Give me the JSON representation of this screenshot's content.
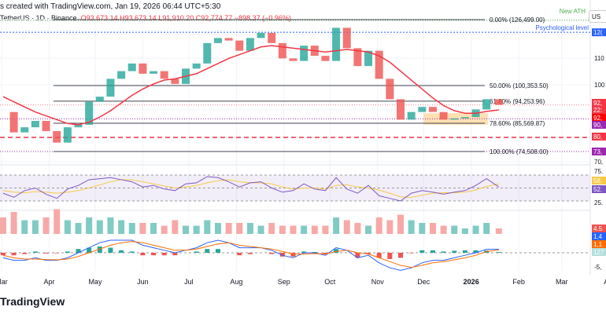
{
  "header": {
    "caption": "s created with TradingView.com, Jan 19, 2026 06:44 UTC+5:30",
    "symbol": "TetherUS · 1D · Binance",
    "open": "O93,673.14",
    "high": "H93,673.14",
    "low": "L91,910.20",
    "close": "C92,774.77",
    "change": "−898.37 (−0.96%)",
    "currency": "US"
  },
  "logo": "TradingView",
  "annotations": {
    "ath": "New ATH",
    "psych": "Psychological level"
  },
  "colors": {
    "up": "#26a69a",
    "down": "#ef5350",
    "ma": "#f23645",
    "rsi": "#7e57c2",
    "rsi_ma": "#f7c948",
    "macd": "#2962ff",
    "signal": "#ff6d00",
    "ath": "#4caf50",
    "psych": "#2962ff",
    "fib": "#434651"
  },
  "right_axis": [
    "12(",
    "110",
    "100",
    "70,",
    "75.",
    "25.",
    "-5,"
  ],
  "badges": [
    {
      "t": "92,",
      "c": "#f23645",
      "p": 92775
    },
    {
      "t": "22:",
      "c": "#f23645",
      "p": 91200
    },
    {
      "t": "92,",
      "c": "#ff0000",
      "p": 89200
    },
    {
      "t": "90,",
      "c": "#9c27b0",
      "p": 87300
    },
    {
      "t": "80,",
      "c": "#f23645",
      "p": 80000
    },
    {
      "t": "73,",
      "c": "#9c27b0",
      "p": 74508
    }
  ],
  "osc_badges": [
    {
      "t": "58.",
      "c": "#f7c948",
      "y": "rsi",
      "v": 58
    },
    {
      "t": "52.",
      "c": "#7e57c2",
      "y": "rsi",
      "v": 52
    },
    {
      "t": "4.5",
      "c": "#ef5350",
      "y": "vol"
    },
    {
      "t": "1,4",
      "c": "#2962ff",
      "y": "macd1"
    },
    {
      "t": "1,1",
      "c": "#ff6d00",
      "y": "macd2"
    },
    {
      "t": "127",
      "c": "#b2dfdb",
      "y": "macd3"
    }
  ],
  "chart_data": {
    "type": "line",
    "title": "",
    "x_ticks": [
      "Mar",
      "Apr",
      "May",
      "Jun",
      "Jul",
      "Aug",
      "Sep",
      "Oct",
      "Nov",
      "Dec",
      "2026",
      "Feb",
      "Mar",
      "Apr"
    ],
    "x_tick_dates": [
      "2025-03-01",
      "2025-04-01",
      "2025-05-01",
      "2025-06-01",
      "2025-07-01",
      "2025-08-01",
      "2025-09-01",
      "2025-10-01",
      "2025-11-01",
      "2025-12-01",
      "2026-01-01",
      "2026-02-01",
      "2026-03-01",
      "2026-04-01"
    ],
    "dates": [
      "2025-03-02",
      "2025-03-09",
      "2025-03-16",
      "2025-03-23",
      "2025-03-30",
      "2025-04-06",
      "2025-04-13",
      "2025-04-20",
      "2025-04-27",
      "2025-05-04",
      "2025-05-11",
      "2025-05-18",
      "2025-05-25",
      "2025-06-01",
      "2025-06-08",
      "2025-06-15",
      "2025-06-22",
      "2025-06-29",
      "2025-07-06",
      "2025-07-13",
      "2025-07-20",
      "2025-07-27",
      "2025-08-03",
      "2025-08-10",
      "2025-08-17",
      "2025-08-24",
      "2025-08-31",
      "2025-09-07",
      "2025-09-14",
      "2025-09-21",
      "2025-09-28",
      "2025-10-05",
      "2025-10-12",
      "2025-10-19",
      "2025-10-26",
      "2025-11-02",
      "2025-11-09",
      "2025-11-16",
      "2025-11-23",
      "2025-11-30",
      "2025-12-07",
      "2025-12-14",
      "2025-12-21",
      "2025-12-28",
      "2026-01-04",
      "2026-01-11",
      "2026-01-19"
    ],
    "series": [
      {
        "role": "price",
        "values": [
          90000,
          82000,
          84000,
          86500,
          82500,
          78000,
          84000,
          85000,
          94000,
          96000,
          103000,
          106000,
          109000,
          105000,
          106000,
          103000,
          101000,
          107000,
          109000,
          117000,
          119000,
          118000,
          114000,
          119000,
          121000,
          117000,
          111000,
          110000,
          116000,
          112000,
          110000,
          123000,
          115000,
          108000,
          114000,
          103000,
          95000,
          87000,
          90000,
          92000,
          90000,
          87000,
          87500,
          88000,
          91000,
          95000,
          92775
        ]
      },
      {
        "role": "moving-average",
        "values": [
          96000,
          94000,
          92000,
          90000,
          88500,
          87000,
          85500,
          85000,
          86000,
          88000,
          90500,
          93500,
          96500,
          99000,
          101000,
          102500,
          103000,
          104000,
          105000,
          107000,
          109000,
          111000,
          112500,
          114000,
          115500,
          116000,
          115500,
          115000,
          114500,
          114000,
          113500,
          114000,
          114500,
          114000,
          113500,
          112000,
          109500,
          106000,
          102500,
          99000,
          95500,
          92500,
          90500,
          89500,
          89500,
          90200,
          90800
        ]
      },
      {
        "role": "rsi",
        "values": [
          40,
          32,
          45,
          50,
          38,
          30,
          48,
          55,
          66,
          68,
          70,
          66,
          62,
          52,
          55,
          48,
          45,
          58,
          60,
          72,
          70,
          62,
          52,
          60,
          62,
          50,
          42,
          45,
          58,
          48,
          45,
          70,
          48,
          40,
          55,
          35,
          30,
          25,
          40,
          45,
          42,
          38,
          42,
          45,
          55,
          68,
          52
        ]
      },
      {
        "role": "rsi-ma",
        "values": [
          45,
          42,
          41,
          43,
          42,
          40,
          42,
          45,
          50,
          56,
          62,
          66,
          66,
          62,
          58,
          54,
          50,
          52,
          55,
          60,
          64,
          66,
          62,
          60,
          60,
          58,
          52,
          48,
          50,
          50,
          48,
          55,
          56,
          52,
          50,
          46,
          40,
          33,
          32,
          36,
          40,
          41,
          41,
          42,
          46,
          53,
          58
        ]
      },
      {
        "role": "volume",
        "values": [
          6,
          8,
          5,
          5,
          6,
          9,
          5,
          4,
          6,
          5,
          6,
          5,
          4,
          4,
          4,
          3,
          5,
          3,
          3,
          5,
          4,
          4,
          4,
          4,
          3,
          4,
          3,
          3,
          3,
          3,
          3,
          6,
          5,
          4,
          3,
          6,
          5,
          7,
          5,
          4,
          4,
          3,
          3,
          2,
          3,
          4,
          2
        ]
      },
      {
        "role": "macd",
        "values": [
          -2,
          -3,
          -3,
          -2,
          -3,
          -3,
          -2,
          0,
          2,
          4,
          5,
          5,
          5,
          3,
          2,
          1,
          0,
          1,
          2,
          4,
          5,
          4,
          2,
          2,
          2,
          1,
          -1,
          -2,
          0,
          0,
          -1,
          2,
          1,
          -2,
          -1,
          -4,
          -6,
          -7,
          -6,
          -4,
          -3,
          -3,
          -2,
          -1,
          0,
          1.4,
          1.4
        ]
      },
      {
        "role": "signal",
        "values": [
          -1,
          -2,
          -2.5,
          -2.5,
          -2.7,
          -2.8,
          -2.5,
          -1.5,
          0,
          1.5,
          3,
          4,
          4.5,
          4,
          3,
          2,
          1,
          1,
          1.5,
          2.5,
          3.5,
          4,
          3,
          2.5,
          2,
          1.5,
          0.5,
          -0.5,
          -0.5,
          -0.3,
          -0.5,
          0.5,
          1,
          0,
          -0.5,
          -2,
          -3.5,
          -5,
          -5.8,
          -5,
          -4,
          -3.5,
          -2.8,
          -2,
          -1,
          0.5,
          1.1
        ]
      }
    ],
    "ylim": [
      70000,
      128000
    ],
    "rsi_levels": [
      25,
      75
    ],
    "fib_levels": [
      {
        "label": "0.00% (126,499.00)",
        "p": 126499
      },
      {
        "label": "50.00% (100,353.50)",
        "p": 100353.5
      },
      {
        "label": "61.80% (94,253.96)",
        "p": 94253.96
      },
      {
        "label": "78.60% (85,569.87)",
        "p": 85569.87
      },
      {
        "label": "100.00% (74,508.00)",
        "p": 74508
      }
    ],
    "psychological_level": 120000,
    "support_dashed": 80000,
    "grid": true,
    "zone": {
      "from": "2025-12-01",
      "to": "2026-01-12",
      "low": 85000,
      "high": 89500
    }
  }
}
